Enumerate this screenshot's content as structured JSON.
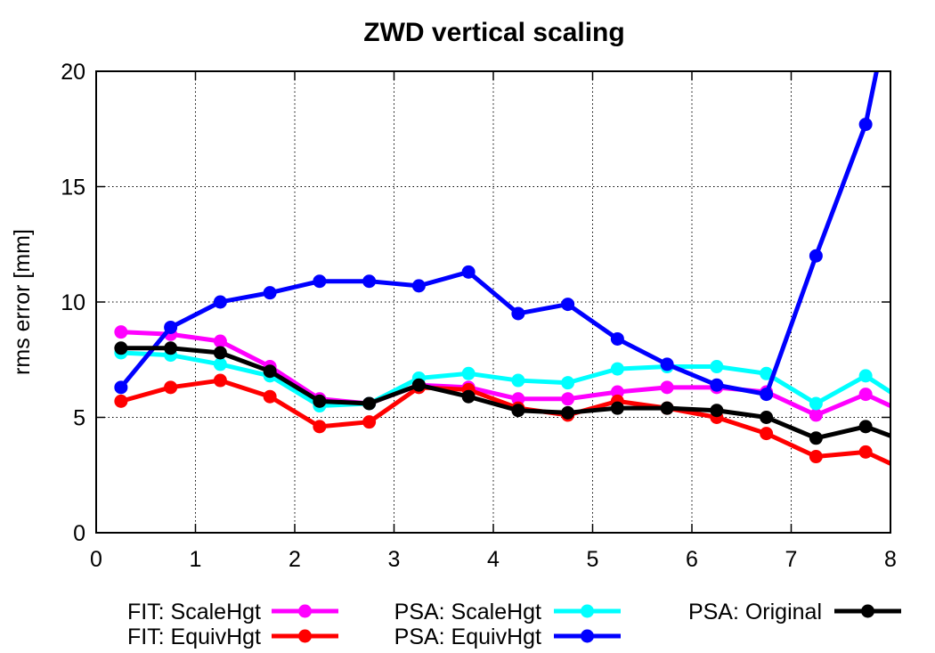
{
  "chart_data": {
    "type": "line",
    "title": "ZWD vertical scaling",
    "xlabel": "",
    "ylabel": "rms error [mm]",
    "xlim": [
      0,
      8
    ],
    "ylim": [
      0,
      20
    ],
    "xticks": [
      "0",
      "1",
      "2",
      "3",
      "4",
      "5",
      "6",
      "7",
      "8"
    ],
    "yticks": [
      "0",
      "5",
      "10",
      "15",
      "20"
    ],
    "grid": true,
    "legend_position": "bottom",
    "x": [
      0.25,
      0.75,
      1.25,
      1.75,
      2.25,
      2.75,
      3.25,
      3.75,
      4.25,
      4.75,
      5.25,
      5.75,
      6.25,
      6.75,
      7.25,
      7.75
    ],
    "series": [
      {
        "name": "FIT: ScaleHgt",
        "color": "#ff00ff",
        "values": [
          8.7,
          8.6,
          8.3,
          7.2,
          5.8,
          5.6,
          6.4,
          6.3,
          5.8,
          5.8,
          6.1,
          6.3,
          6.3,
          6.1,
          5.1,
          6.0
        ],
        "continues_to": [
          8,
          5.5
        ]
      },
      {
        "name": "FIT: EquivHgt",
        "color": "#ff0000",
        "values": [
          5.7,
          6.3,
          6.6,
          5.9,
          4.6,
          4.8,
          6.3,
          6.2,
          5.4,
          5.1,
          5.7,
          5.4,
          5.0,
          4.3,
          3.3,
          3.5
        ],
        "continues_to": [
          8,
          3.0
        ]
      },
      {
        "name": "PSA: ScaleHgt",
        "color": "#00ffff",
        "values": [
          7.8,
          7.7,
          7.3,
          6.8,
          5.5,
          5.6,
          6.7,
          6.9,
          6.6,
          6.5,
          7.1,
          7.2,
          7.2,
          6.9,
          5.6,
          6.8
        ],
        "continues_to": [
          8,
          6.1
        ]
      },
      {
        "name": "PSA: EquivHgt",
        "color": "#0000ff",
        "values": [
          6.3,
          8.9,
          10.0,
          10.4,
          10.9,
          10.9,
          10.7,
          11.3,
          9.5,
          9.9,
          8.4,
          7.3,
          6.4,
          6.0,
          12.0,
          17.7
        ],
        "continues_to": [
          7.86,
          20
        ]
      },
      {
        "name": "PSA: Original",
        "color": "#000000",
        "values": [
          8.0,
          8.0,
          7.8,
          7.0,
          5.7,
          5.6,
          6.4,
          5.9,
          5.3,
          5.2,
          5.4,
          5.4,
          5.3,
          5.0,
          4.1,
          4.6
        ],
        "continues_to": [
          8,
          4.2
        ]
      }
    ]
  }
}
